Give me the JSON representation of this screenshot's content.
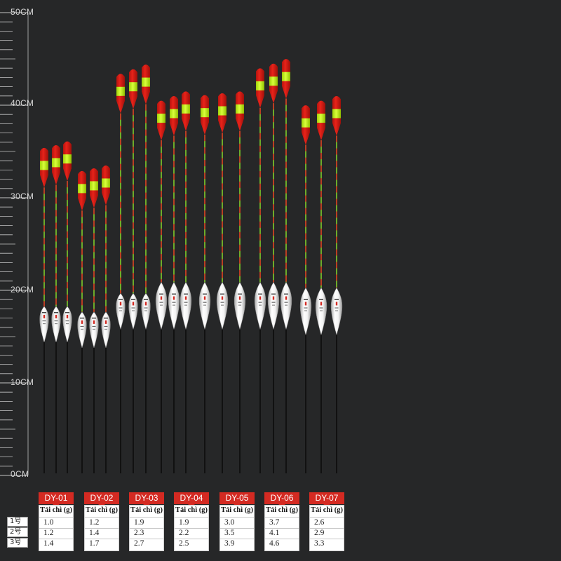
{
  "ruler": {
    "labels": [
      "50CM",
      "40CM",
      "30CM",
      "20CM",
      "10CM",
      "0CM"
    ],
    "max_cm": 50
  },
  "colors": {
    "background": "#262728",
    "tip_red": "#e8231a",
    "tip_yellow": "#d9ff3a",
    "header_red": "#d42a22",
    "body_white": "#f2f2f2"
  },
  "row_labels": [
    "1号",
    "2号",
    "3号"
  ],
  "groups": [
    {
      "name": "DY-01",
      "sub": "Tải chì (g)",
      "values": [
        "1.0",
        "1.2",
        "1.4"
      ]
    },
    {
      "name": "DY-02",
      "sub": "Tải chì (g)",
      "values": [
        "1.2",
        "1.4",
        "1.7"
      ]
    },
    {
      "name": "DY-03",
      "sub": "Tải chì (g)",
      "values": [
        "1.9",
        "2.3",
        "2.7"
      ]
    },
    {
      "name": "DY-04",
      "sub": "Tải chì (g)",
      "values": [
        "1.9",
        "2.2",
        "2.5"
      ]
    },
    {
      "name": "DY-05",
      "sub": "Tải chì (g)",
      "values": [
        "3.0",
        "3.5",
        "3.9"
      ]
    },
    {
      "name": "DY-06",
      "sub": "Tải chì (g)",
      "values": [
        "3.7",
        "4.1",
        "4.6"
      ]
    },
    {
      "name": "DY-07",
      "sub": "Tải chì (g)",
      "values": [
        "2.6",
        "2.9",
        "3.3"
      ]
    }
  ],
  "floats": [
    {
      "group": "DY-01",
      "total_cm": 35.5,
      "body_cm": 17.2
    },
    {
      "group": "DY-01",
      "total_cm": 35.8,
      "body_cm": 17.2
    },
    {
      "group": "DY-01",
      "total_cm": 36.2,
      "body_cm": 17.2
    },
    {
      "group": "DY-02",
      "total_cm": 33.0,
      "body_cm": 16.6
    },
    {
      "group": "DY-02",
      "total_cm": 33.3,
      "body_cm": 16.6
    },
    {
      "group": "DY-02",
      "total_cm": 33.6,
      "body_cm": 16.6
    },
    {
      "group": "DY-03",
      "total_cm": 43.5,
      "body_cm": 18.6
    },
    {
      "group": "DY-03",
      "total_cm": 44.0,
      "body_cm": 18.6
    },
    {
      "group": "DY-03",
      "total_cm": 44.5,
      "body_cm": 18.6
    },
    {
      "group": "DY-04",
      "total_cm": 40.6,
      "body_cm": 19.2
    },
    {
      "group": "DY-04",
      "total_cm": 41.1,
      "body_cm": 19.2
    },
    {
      "group": "DY-04",
      "total_cm": 41.6,
      "body_cm": 19.2
    },
    {
      "group": "DY-05",
      "total_cm": 41.2,
      "body_cm": 19.2
    },
    {
      "group": "DY-05",
      "total_cm": 41.4,
      "body_cm": 19.2
    },
    {
      "group": "DY-05",
      "total_cm": 41.6,
      "body_cm": 19.2
    },
    {
      "group": "DY-06",
      "total_cm": 44.1,
      "body_cm": 19.2
    },
    {
      "group": "DY-06",
      "total_cm": 44.6,
      "body_cm": 19.2
    },
    {
      "group": "DY-06",
      "total_cm": 45.1,
      "body_cm": 19.2
    },
    {
      "group": "DY-07",
      "total_cm": 40.1,
      "body_cm": 18.6
    },
    {
      "group": "DY-07",
      "total_cm": 40.6,
      "body_cm": 18.6
    },
    {
      "group": "DY-07",
      "total_cm": 41.1,
      "body_cm": 18.6
    }
  ]
}
